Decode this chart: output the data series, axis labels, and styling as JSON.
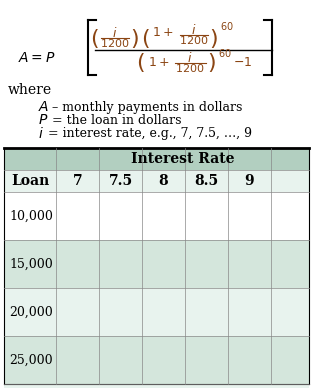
{
  "background_color": "#ffffff",
  "formula_color": "#8B4513",
  "text_color": "#000000",
  "table_header_bg": "#b2cfc0",
  "table_row_bg_alt": "#d4e6dc",
  "table_row_bg": "#e8f3ee",
  "table_border_color": "#000000",
  "col_labels": [
    "7",
    "7.5",
    "8",
    "8.5",
    "9"
  ],
  "row_labels": [
    "10,000",
    "15,000",
    "20,000",
    "25,000"
  ],
  "interest_rate_label": "Interest Rate",
  "loan_label": "Loan"
}
